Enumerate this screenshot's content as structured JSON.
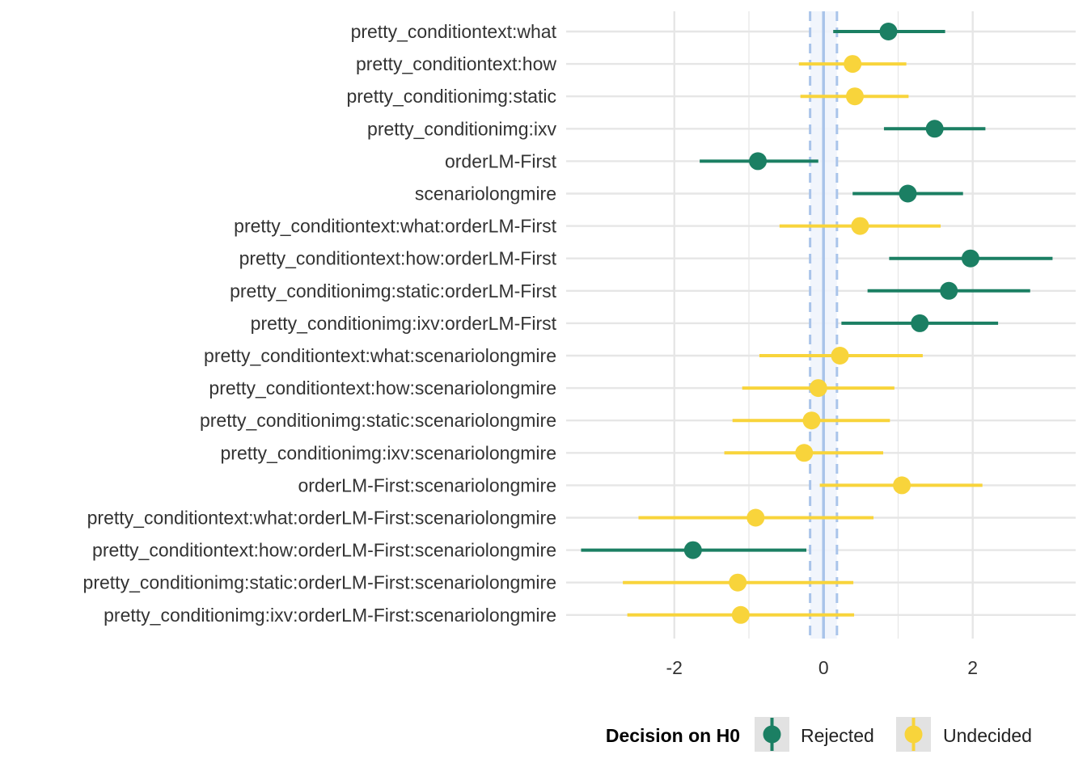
{
  "chart_data": {
    "type": "scatter",
    "subtype": "forest-plot",
    "terms": [
      "pretty_conditiontext:what",
      "pretty_conditiontext:how",
      "pretty_conditionimg:static",
      "pretty_conditionimg:ixv",
      "orderLM-First",
      "scenariolongmire",
      "pretty_conditiontext:what:orderLM-First",
      "pretty_conditiontext:how:orderLM-First",
      "pretty_conditionimg:static:orderLM-First",
      "pretty_conditionimg:ixv:orderLM-First",
      "pretty_conditiontext:what:scenariolongmire",
      "pretty_conditiontext:how:scenariolongmire",
      "pretty_conditionimg:static:scenariolongmire",
      "pretty_conditionimg:ixv:scenariolongmire",
      "orderLM-First:scenariolongmire",
      "pretty_conditiontext:what:orderLM-First:scenariolongmire",
      "pretty_conditiontext:how:orderLM-First:scenariolongmire",
      "pretty_conditionimg:static:orderLM-First:scenariolongmire",
      "pretty_conditionimg:ixv:orderLM-First:scenariolongmire"
    ],
    "estimates": [
      0.87,
      0.39,
      0.42,
      1.49,
      -0.88,
      1.13,
      0.49,
      1.97,
      1.68,
      1.29,
      0.22,
      -0.07,
      -0.16,
      -0.26,
      1.05,
      -0.91,
      -1.75,
      -1.15,
      -1.11
    ],
    "lower": [
      0.13,
      -0.33,
      -0.31,
      0.81,
      -1.66,
      0.39,
      -0.59,
      0.88,
      0.59,
      0.24,
      -0.86,
      -1.09,
      -1.22,
      -1.33,
      -0.05,
      -2.48,
      -3.25,
      -2.69,
      -2.63
    ],
    "upper": [
      1.63,
      1.11,
      1.14,
      2.17,
      -0.07,
      1.87,
      1.57,
      3.07,
      2.77,
      2.34,
      1.33,
      0.95,
      0.89,
      0.8,
      2.13,
      0.67,
      -0.23,
      0.4,
      0.41
    ],
    "decision": [
      "Rejected",
      "Undecided",
      "Undecided",
      "Rejected",
      "Rejected",
      "Rejected",
      "Undecided",
      "Rejected",
      "Rejected",
      "Rejected",
      "Undecided",
      "Undecided",
      "Undecided",
      "Undecided",
      "Undecided",
      "Undecided",
      "Rejected",
      "Undecided",
      "Undecided"
    ],
    "xlim": [
      -3.45,
      3.38
    ],
    "xticks": [
      -2,
      0,
      2
    ],
    "xtick_labels": [
      "-2",
      "0",
      "2"
    ],
    "reference_line": 0,
    "rope": [
      -0.18,
      0.18
    ],
    "grid": true,
    "legend": {
      "title": "Decision on H0",
      "position": "bottom",
      "entries": [
        {
          "label": "Rejected",
          "color": "#1b7f63"
        },
        {
          "label": "Undecided",
          "color": "#f8d43b"
        }
      ]
    },
    "colors": {
      "reference": "#a9c4ea",
      "rope_fill": "#eef3fb",
      "grid": "#e6e6e6"
    }
  }
}
